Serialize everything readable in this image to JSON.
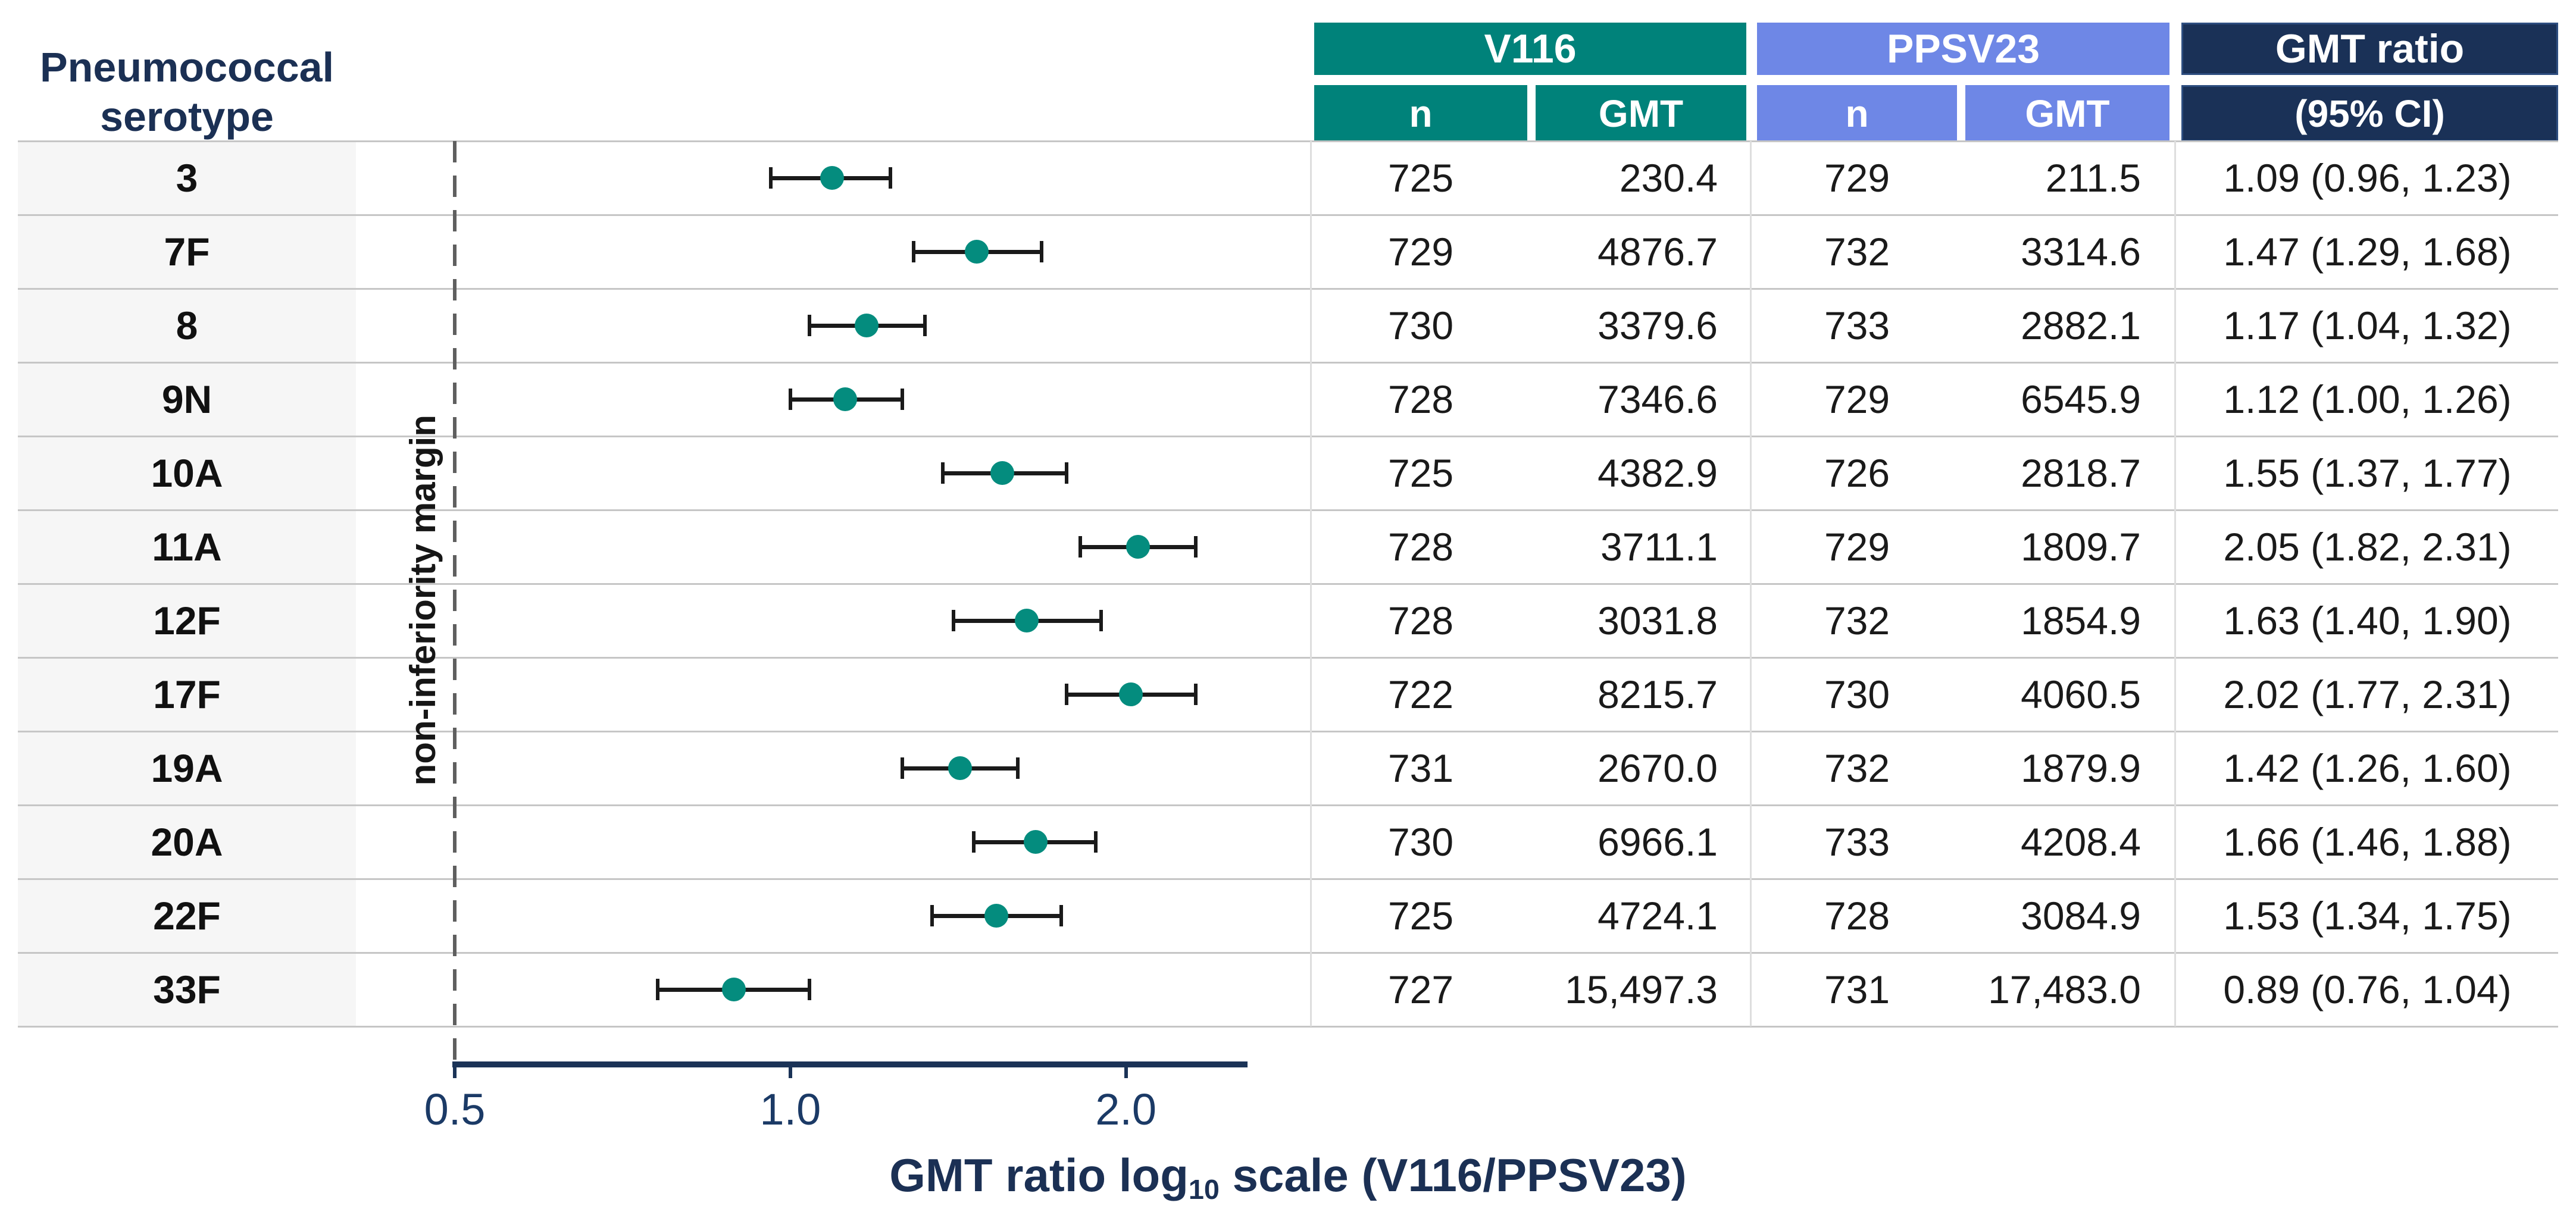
{
  "left_header": {
    "line1": "Pneumococcal",
    "line2": "serotype"
  },
  "colors": {
    "v116_teal": "#00827A",
    "ppsv23_periwinkle": "#6E87E6",
    "ratio_navy": "#1A3157",
    "marker_teal": "#048C7E",
    "errorbar_black": "#1A1A1A",
    "row_label_bg": "#F6F6F6",
    "divider_gray": "#C6C6C6",
    "dashed_line_gray": "#5F5F5F"
  },
  "table_header": {
    "v116": {
      "label": "V116",
      "col_n": "n",
      "col_gmt": "GMT"
    },
    "ppsv23": {
      "label": "PPSV23",
      "col_n": "n",
      "col_gmt": "GMT"
    },
    "ratio": {
      "label": "GMT ratio",
      "sub_label": "(95% CI)"
    }
  },
  "rows": [
    {
      "serotype": "3",
      "v116_n": "725",
      "v116_gmt": "230.4",
      "ppsv23_n": "729",
      "ppsv23_gmt": "211.5",
      "ratio_ci": "1.09 (0.96, 1.23)",
      "ratio": 1.09,
      "lo": 0.96,
      "hi": 1.23
    },
    {
      "serotype": "7F",
      "v116_n": "729",
      "v116_gmt": "4876.7",
      "ppsv23_n": "732",
      "ppsv23_gmt": "3314.6",
      "ratio_ci": "1.47 (1.29, 1.68)",
      "ratio": 1.47,
      "lo": 1.29,
      "hi": 1.68
    },
    {
      "serotype": "8",
      "v116_n": "730",
      "v116_gmt": "3379.6",
      "ppsv23_n": "733",
      "ppsv23_gmt": "2882.1",
      "ratio_ci": "1.17 (1.04, 1.32)",
      "ratio": 1.17,
      "lo": 1.04,
      "hi": 1.32
    },
    {
      "serotype": "9N",
      "v116_n": "728",
      "v116_gmt": "7346.6",
      "ppsv23_n": "729",
      "ppsv23_gmt": "6545.9",
      "ratio_ci": "1.12 (1.00, 1.26)",
      "ratio": 1.12,
      "lo": 1.0,
      "hi": 1.26
    },
    {
      "serotype": "10A",
      "v116_n": "725",
      "v116_gmt": "4382.9",
      "ppsv23_n": "726",
      "ppsv23_gmt": "2818.7",
      "ratio_ci": "1.55 (1.37, 1.77)",
      "ratio": 1.55,
      "lo": 1.37,
      "hi": 1.77
    },
    {
      "serotype": "11A",
      "v116_n": "728",
      "v116_gmt": "3711.1",
      "ppsv23_n": "729",
      "ppsv23_gmt": "1809.7",
      "ratio_ci": "2.05 (1.82, 2.31)",
      "ratio": 2.05,
      "lo": 1.82,
      "hi": 2.31
    },
    {
      "serotype": "12F",
      "v116_n": "728",
      "v116_gmt": "3031.8",
      "ppsv23_n": "732",
      "ppsv23_gmt": "1854.9",
      "ratio_ci": "1.63 (1.40, 1.90)",
      "ratio": 1.63,
      "lo": 1.4,
      "hi": 1.9
    },
    {
      "serotype": "17F",
      "v116_n": "722",
      "v116_gmt": "8215.7",
      "ppsv23_n": "730",
      "ppsv23_gmt": "4060.5",
      "ratio_ci": "2.02 (1.77, 2.31)",
      "ratio": 2.02,
      "lo": 1.77,
      "hi": 2.31
    },
    {
      "serotype": "19A",
      "v116_n": "731",
      "v116_gmt": "2670.0",
      "ppsv23_n": "732",
      "ppsv23_gmt": "1879.9",
      "ratio_ci": "1.42 (1.26, 1.60)",
      "ratio": 1.42,
      "lo": 1.26,
      "hi": 1.6
    },
    {
      "serotype": "20A",
      "v116_n": "730",
      "v116_gmt": "6966.1",
      "ppsv23_n": "733",
      "ppsv23_gmt": "4208.4",
      "ratio_ci": "1.66 (1.46, 1.88)",
      "ratio": 1.66,
      "lo": 1.46,
      "hi": 1.88
    },
    {
      "serotype": "22F",
      "v116_n": "725",
      "v116_gmt": "4724.1",
      "ppsv23_n": "728",
      "ppsv23_gmt": "3084.9",
      "ratio_ci": "1.53 (1.34, 1.75)",
      "ratio": 1.53,
      "lo": 1.34,
      "hi": 1.75
    },
    {
      "serotype": "33F",
      "v116_n": "727",
      "v116_gmt": "15,497.3",
      "ppsv23_n": "731",
      "ppsv23_gmt": "17,483.0",
      "ratio_ci": "0.89 (0.76, 1.04)",
      "ratio": 0.89,
      "lo": 0.76,
      "hi": 1.04
    }
  ],
  "axis": {
    "tick_labels": [
      "0.5",
      "1.0",
      "2.0"
    ],
    "ticks": [
      0.5,
      1.0,
      2.0
    ],
    "title_prefix": "GMT ratio log",
    "title_sub": "10",
    "title_suffix": " scale (V116/PPSV23)",
    "margin_label": "non-inferiority margin"
  },
  "chart_data": {
    "type": "scatter",
    "subtype": "forest-plot",
    "categories": [
      "3",
      "7F",
      "8",
      "9N",
      "10A",
      "11A",
      "12F",
      "17F",
      "19A",
      "20A",
      "22F",
      "33F"
    ],
    "series": [
      {
        "name": "GMT ratio (95% CI), V116/PPSV23",
        "values": [
          1.09,
          1.47,
          1.17,
          1.12,
          1.55,
          2.05,
          1.63,
          2.02,
          1.42,
          1.66,
          1.53,
          0.89
        ],
        "ci_low": [
          0.96,
          1.29,
          1.04,
          1.0,
          1.37,
          1.82,
          1.4,
          1.77,
          1.26,
          1.46,
          1.34,
          0.76
        ],
        "ci_high": [
          1.23,
          1.68,
          1.32,
          1.26,
          1.77,
          2.31,
          1.9,
          2.31,
          1.6,
          1.88,
          1.75,
          1.04
        ]
      }
    ],
    "x_scale": "log10",
    "x_ticks": [
      0.5,
      1.0,
      2.0
    ],
    "x_range": [
      0.5,
      2.55
    ],
    "reference_line": {
      "x": 0.5,
      "label": "non-inferiority margin",
      "style": "dashed"
    },
    "xlabel": "GMT ratio log10 scale (V116/PPSV23)",
    "ylabel": "Pneumococcal serotype",
    "legend_position": "none",
    "grid": "row-dividers",
    "table_columns": [
      "V116 n",
      "V116 GMT",
      "PPSV23 n",
      "PPSV23 GMT",
      "GMT ratio (95% CI)"
    ]
  }
}
